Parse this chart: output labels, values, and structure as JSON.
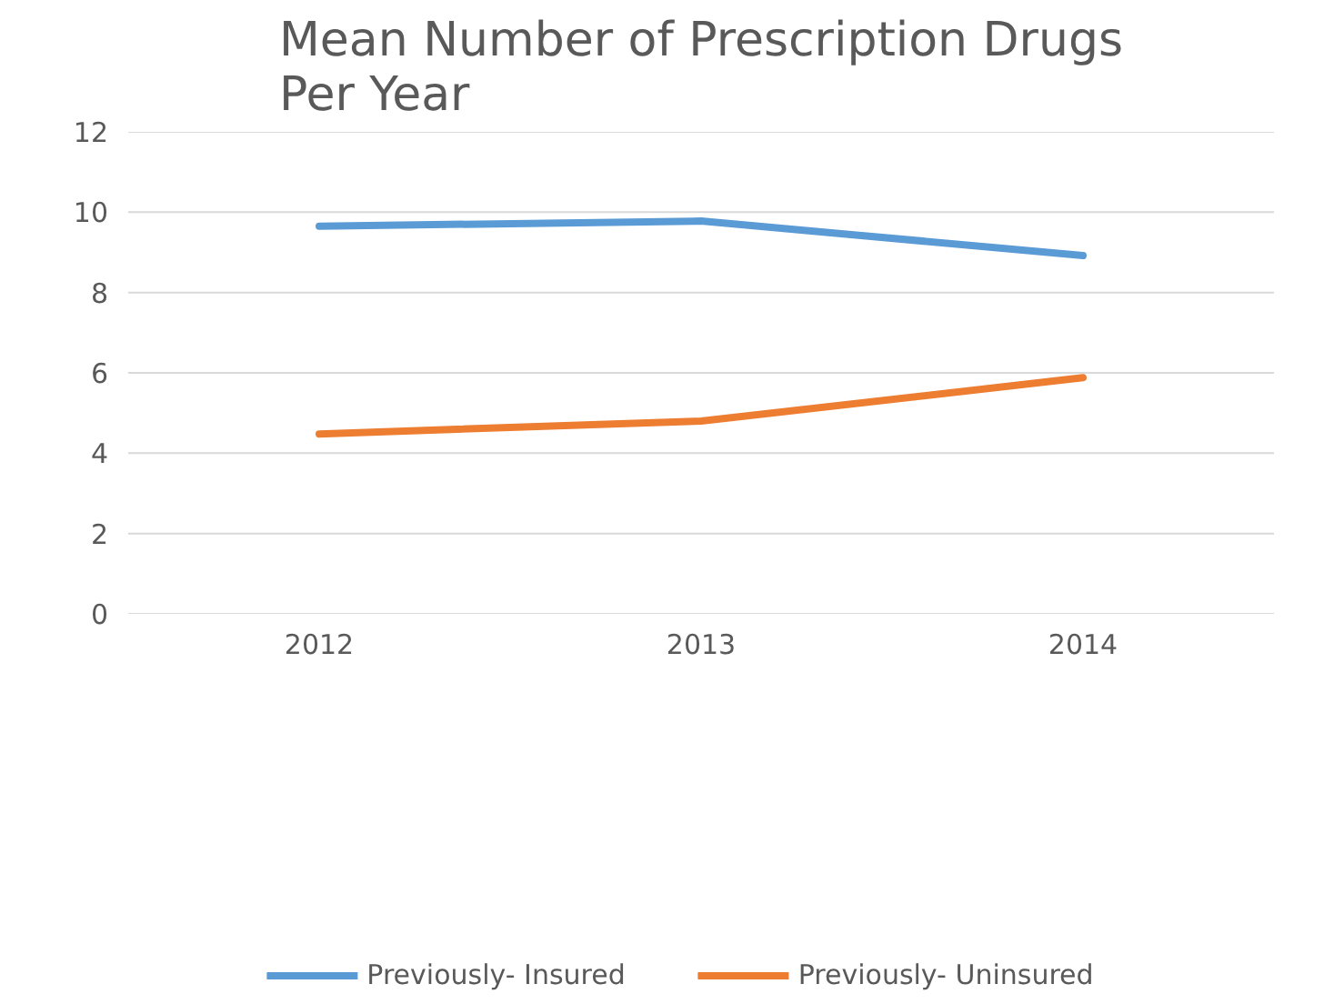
{
  "chart_data": {
    "type": "line",
    "title": "Mean Number of Prescription Drugs Per Year",
    "categories": [
      "2012",
      "2013",
      "2014"
    ],
    "series": [
      {
        "name": "Previously- Insured",
        "color": "#5b9bd5",
        "values": [
          9.65,
          9.78,
          8.92
        ]
      },
      {
        "name": "Previously- Uninsured",
        "color": "#ed7d31",
        "values": [
          4.48,
          4.8,
          5.88
        ]
      }
    ],
    "ylim": [
      0,
      12
    ],
    "yticks": [
      0,
      2,
      4,
      6,
      8,
      10,
      12
    ],
    "grid": "y",
    "legend": "bottom"
  }
}
